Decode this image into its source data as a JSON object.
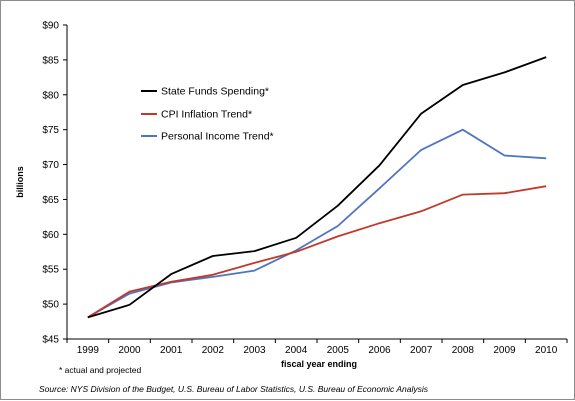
{
  "chart_data": {
    "type": "line",
    "title": "",
    "xlabel": "fiscal year ending",
    "ylabel": "billions",
    "x": [
      "1999",
      "2000",
      "2001",
      "2002",
      "2003",
      "2004",
      "2005",
      "2006",
      "2007",
      "2008",
      "2009",
      "2010"
    ],
    "y_ticks": [
      "$45",
      "$50",
      "$55",
      "$60",
      "$65",
      "$70",
      "$75",
      "$80",
      "$85",
      "$90"
    ],
    "ylim": [
      45,
      90
    ],
    "grid": false,
    "legend_position": "upper-left",
    "series": [
      {
        "name": "State Funds Spending*",
        "color": "#000000",
        "values": [
          48.1,
          49.9,
          54.3,
          56.9,
          57.6,
          59.5,
          64.1,
          69.9,
          77.3,
          81.4,
          83.2,
          85.4
        ]
      },
      {
        "name": "CPI Inflation Trend*",
        "color": "#c0392b",
        "values": [
          48.1,
          51.8,
          53.2,
          54.2,
          55.9,
          57.5,
          59.7,
          61.6,
          63.3,
          65.7,
          65.9,
          66.9
        ]
      },
      {
        "name": "Personal Income Trend*",
        "color": "#4f74c2",
        "values": [
          48.1,
          51.5,
          53.1,
          53.9,
          54.8,
          57.7,
          61.2,
          66.6,
          72.1,
          75.0,
          71.3,
          70.9
        ]
      }
    ]
  },
  "footnote": "* actual and projected",
  "source": "Source: NYS Division of the Budget, U.S. Bureau of Labor Statistics, U.S. Bureau of Economic Analysis"
}
